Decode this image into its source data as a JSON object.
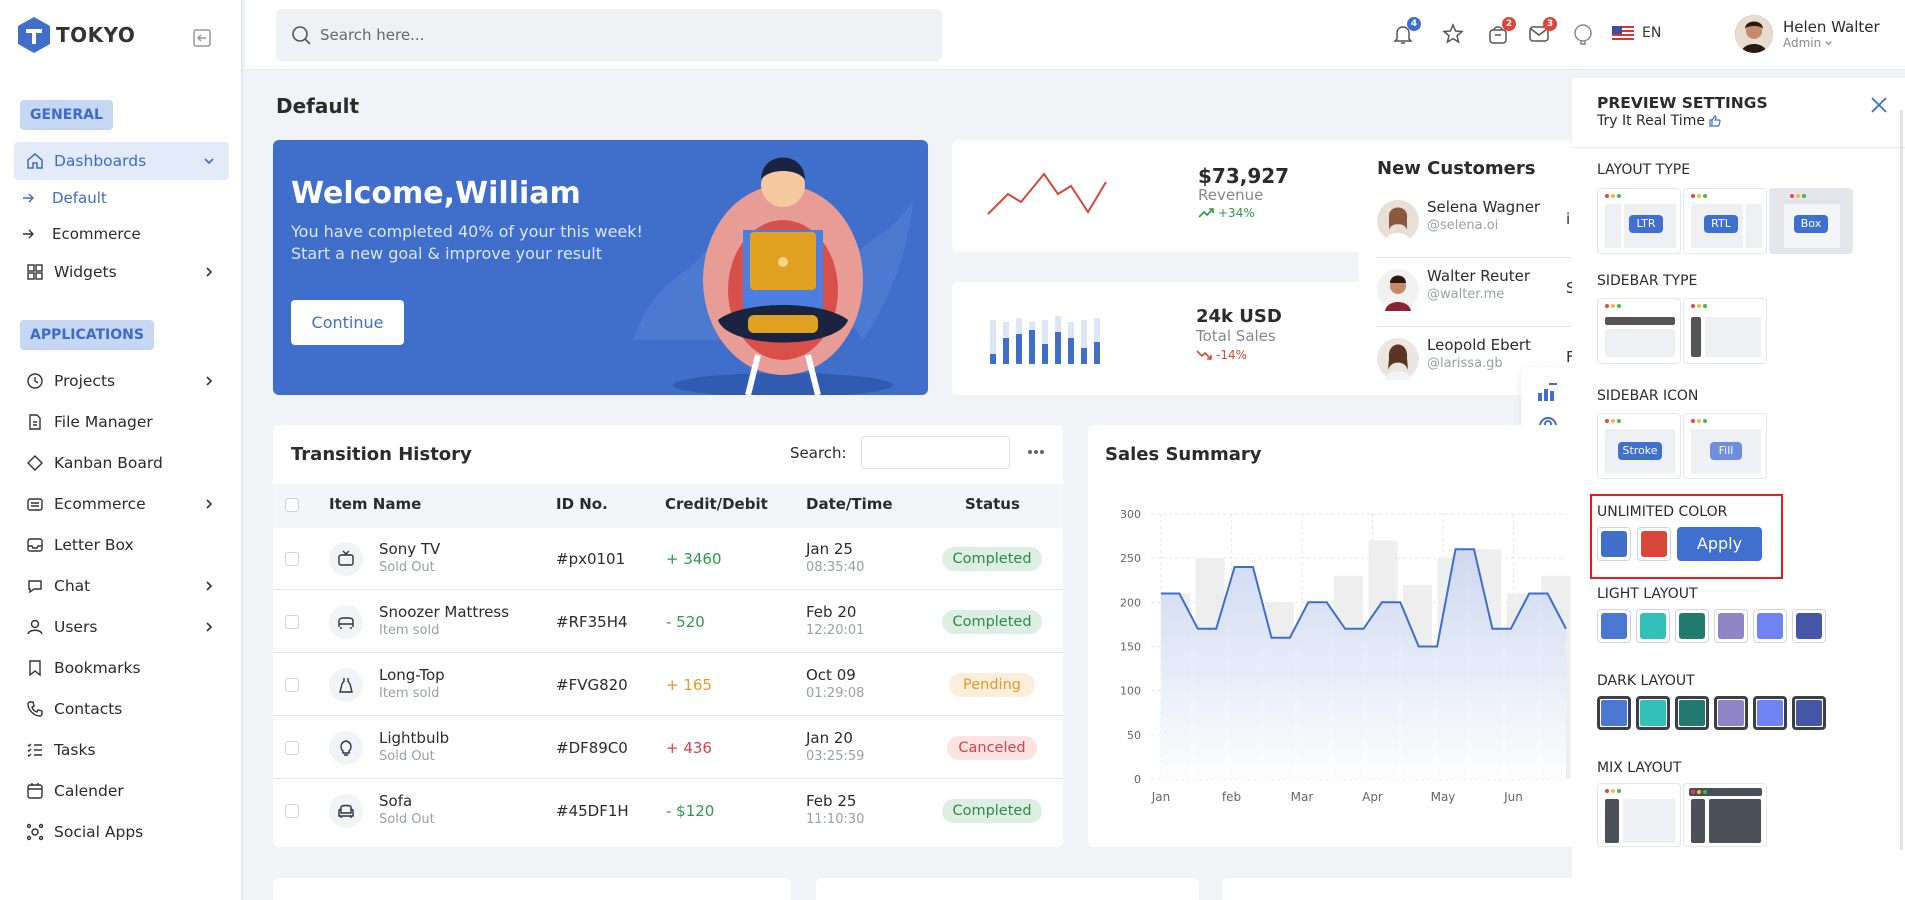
{
  "brand": {
    "name": "TOKYO"
  },
  "sidebar": {
    "general_label": "GENERAL",
    "applications_label": "APPLICATIONS",
    "dashboards": "Dashboards",
    "default": "Default",
    "ecommerce_sub": "Ecommerce",
    "widgets": "Widgets",
    "apps": [
      "Projects",
      "File Manager",
      "Kanban Board",
      "Ecommerce",
      "Letter Box",
      "Chat",
      "Users",
      "Bookmarks",
      "Contacts",
      "Tasks",
      "Calender",
      "Social Apps"
    ]
  },
  "header": {
    "search_placeholder": "Search here...",
    "badges": {
      "notifications": "4",
      "cart": "2",
      "messages": "3"
    },
    "language": "EN",
    "user_name": "Helen Walter",
    "user_role": "Admin"
  },
  "page": {
    "title": "Default"
  },
  "welcome": {
    "title": "Welcome,William",
    "line1": "You have completed 40% of your this week!",
    "line2": "Start a new goal & improve your result",
    "button": "Continue"
  },
  "revenue": {
    "value": "$73,927",
    "label": "Revenue",
    "change": "+34%"
  },
  "sales_stat": {
    "value": "24k USD",
    "label": "Total Sales",
    "change": "-14%"
  },
  "customers": {
    "title": "New Customers",
    "items": [
      {
        "name": "Selena Wagner",
        "handle": "@selena.oi",
        "extra": "i"
      },
      {
        "name": "Walter Reuter",
        "handle": "@walter.me",
        "extra": "S"
      },
      {
        "name": "Leopold Ebert",
        "handle": "@larissa.gb",
        "extra": "F"
      }
    ]
  },
  "transactions": {
    "title": "Transition History",
    "search_label": "Search:",
    "columns": [
      "Item Name",
      "ID No.",
      "Credit/Debit",
      "Date/Time",
      "Status"
    ],
    "rows": [
      {
        "name": "Sony TV",
        "sub": "Sold Out",
        "id": "#px0101",
        "amount": "+ 3460",
        "date": "Jan 25",
        "time": "08:35:40",
        "status": "Completed"
      },
      {
        "name": "Snoozer Mattress",
        "sub": "Item sold",
        "id": "#RF35H4",
        "amount": "- 520",
        "date": "Feb 20",
        "time": "12:20:01",
        "status": "Completed"
      },
      {
        "name": "Long-Top",
        "sub": "Item sold",
        "id": "#FVG820",
        "amount": "+ 165",
        "date": "Oct 09",
        "time": "01:29:08",
        "status": "Pending"
      },
      {
        "name": "Lightbulb",
        "sub": "Sold Out",
        "id": "#DF89C0",
        "amount": "+ 436",
        "date": "Jan 20",
        "time": "03:25:59",
        "status": "Canceled"
      },
      {
        "name": "Sofa",
        "sub": "Sold Out",
        "id": "#45DF1H",
        "amount": "- $120",
        "date": "Feb 25",
        "time": "11:10:30",
        "status": "Completed"
      }
    ],
    "amount_colors": [
      "#2e9a4a",
      "#2e9a4a",
      "#e29a2a",
      "#d8404a",
      "#2e9a4a"
    ]
  },
  "sales_summary": {
    "title": "Sales Summary"
  },
  "chart_data": {
    "type": "line",
    "title": "Sales Summary",
    "categories": [
      "Jan",
      "feb",
      "Mar",
      "Apr",
      "May",
      "Jun"
    ],
    "ylim": [
      0,
      300
    ],
    "yticks": [
      0,
      50,
      100,
      150,
      200,
      250,
      300
    ],
    "line_values": [
      210,
      210,
      170,
      170,
      240,
      240,
      160,
      160,
      200,
      200,
      170,
      170,
      200,
      200,
      150,
      150,
      260,
      260,
      170,
      170,
      210,
      210,
      170
    ],
    "bar_values": [
      210,
      250,
      180,
      200,
      160,
      230,
      270,
      220,
      250,
      260,
      210,
      230
    ],
    "grid": true
  },
  "panel": {
    "title": "PREVIEW SETTINGS",
    "subtitle": "Try It Real Time",
    "layout_type": "LAYOUT TYPE",
    "layout_options": [
      "LTR",
      "RTL",
      "Box"
    ],
    "sidebar_type": "SIDEBAR TYPE",
    "sidebar_icon": "SIDEBAR ICON",
    "icon_options": [
      "Stroke",
      "Fill"
    ],
    "unlimited_color": "UNLIMITED COLOR",
    "apply": "Apply",
    "light_layout": "LIGHT LAYOUT",
    "dark_layout": "DARK LAYOUT",
    "mix_layout": "MIX LAYOUT",
    "unlimited_swatches": [
      "#3f6fcb",
      "#d9473a"
    ],
    "palette": [
      "#4a78d0",
      "#33c0b8",
      "#227a6e",
      "#8f85c6",
      "#6f84f0",
      "#4556a6"
    ]
  }
}
